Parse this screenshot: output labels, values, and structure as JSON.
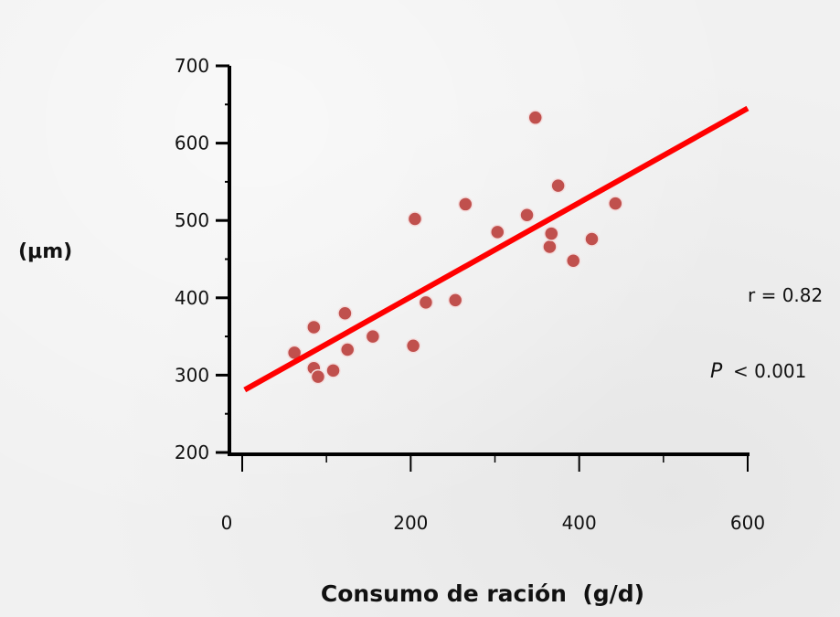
{
  "chart_data": {
    "type": "scatter",
    "title": "",
    "xlabel": "Consumo de ración  (g/d)",
    "ylabel": "(μm)",
    "xlim": [
      0,
      600
    ],
    "ylim": [
      200,
      700
    ],
    "x_ticks": [
      0,
      200,
      400,
      600
    ],
    "y_ticks": [
      200,
      300,
      400,
      500,
      600,
      700
    ],
    "grid": false,
    "point_color": "#c0504d",
    "line_color": "#ff0000",
    "points": [
      {
        "x": 62,
        "y": 329
      },
      {
        "x": 85,
        "y": 362
      },
      {
        "x": 85,
        "y": 309
      },
      {
        "x": 90,
        "y": 298
      },
      {
        "x": 108,
        "y": 306
      },
      {
        "x": 122,
        "y": 380
      },
      {
        "x": 125,
        "y": 333
      },
      {
        "x": 155,
        "y": 350
      },
      {
        "x": 203,
        "y": 338
      },
      {
        "x": 205,
        "y": 502
      },
      {
        "x": 218,
        "y": 394
      },
      {
        "x": 253,
        "y": 397
      },
      {
        "x": 265,
        "y": 521
      },
      {
        "x": 303,
        "y": 485
      },
      {
        "x": 338,
        "y": 507
      },
      {
        "x": 348,
        "y": 633
      },
      {
        "x": 365,
        "y": 466
      },
      {
        "x": 367,
        "y": 483
      },
      {
        "x": 375,
        "y": 545
      },
      {
        "x": 393,
        "y": 448
      },
      {
        "x": 415,
        "y": 476
      },
      {
        "x": 443,
        "y": 522
      }
    ],
    "trendline": {
      "x": [
        3,
        600
      ],
      "y": [
        281,
        645
      ]
    },
    "annotations": {
      "r_text": "r = 0.82",
      "p_symbol": "P",
      "p_text": "< 0.001"
    }
  }
}
